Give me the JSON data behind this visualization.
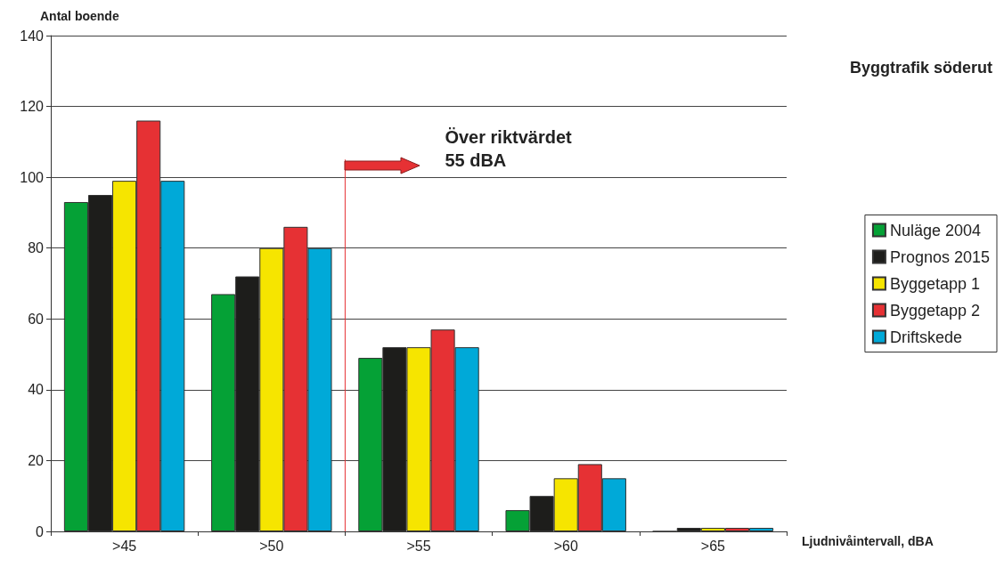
{
  "chart_data": {
    "type": "bar",
    "title": "Byggtrafik söderut",
    "xlabel": "Ljudnivåintervall, dBA",
    "ylabel": "Antal boende",
    "categories": [
      ">45",
      ">50",
      ">55",
      ">60",
      ">65"
    ],
    "series": [
      {
        "name": "Nuläge 2004",
        "color": "#05a136",
        "values": [
          93,
          67,
          49,
          6,
          0
        ]
      },
      {
        "name": "Prognos 2015",
        "color": "#1d1d1b",
        "values": [
          95,
          72,
          52,
          10,
          1
        ]
      },
      {
        "name": "Byggetapp 1",
        "color": "#f6e500",
        "values": [
          99,
          80,
          52,
          15,
          1
        ]
      },
      {
        "name": "Byggetapp 2",
        "color": "#e63134",
        "values": [
          116,
          86,
          57,
          19,
          1
        ]
      },
      {
        "name": "Driftskede",
        "color": "#00a9d8",
        "values": [
          99,
          80,
          52,
          15,
          1
        ]
      }
    ],
    "ylim": [
      0,
      140
    ],
    "yticks": [
      0,
      20,
      40,
      60,
      80,
      100,
      120,
      140
    ],
    "grid": "y",
    "legend": "right",
    "annotations": [
      "Över riktvärdet\n55 dBA"
    ],
    "ref_lines": [
      {
        "axis": "x",
        "value": ">55",
        "color": "#e63134"
      }
    ]
  }
}
